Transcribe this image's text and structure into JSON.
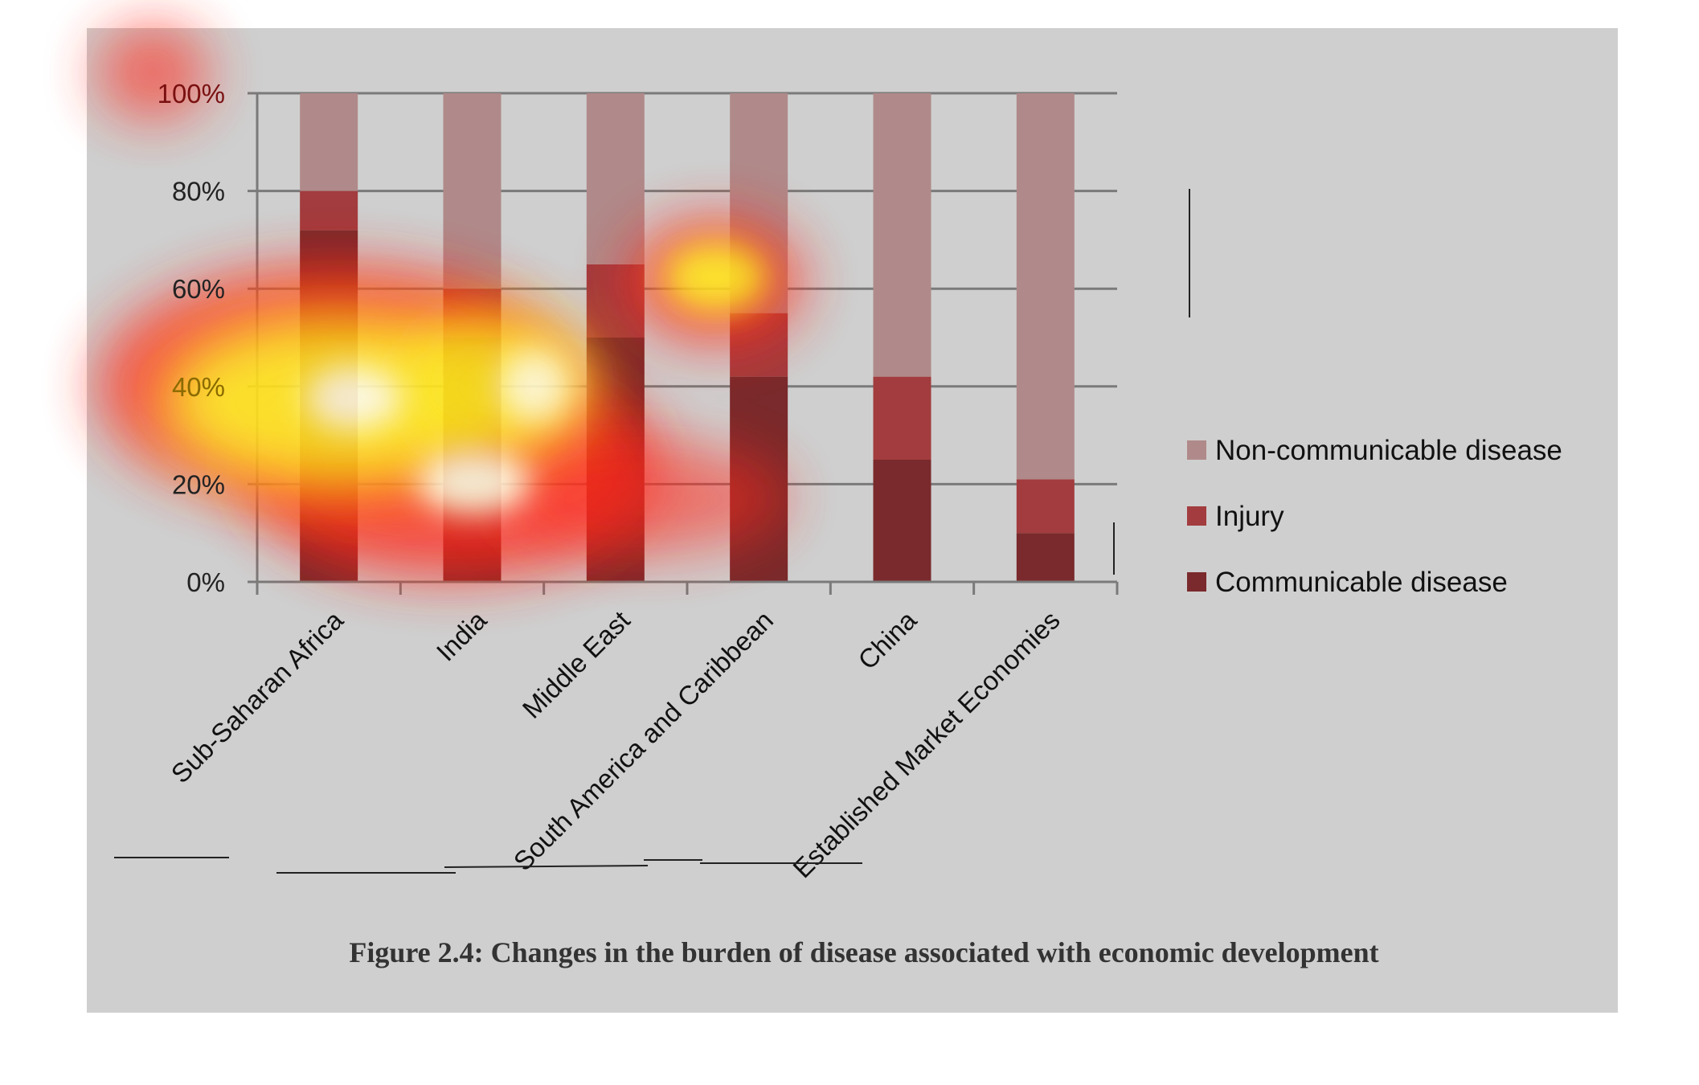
{
  "chart_data": {
    "type": "bar",
    "stacked": true,
    "percent_stacked": true,
    "categories": [
      "Sub-Saharan Africa",
      "India",
      "Middle East",
      "South America and Caribbean",
      "China",
      "Established Market Economies"
    ],
    "series": [
      {
        "name": "Communicable disease",
        "color": "#7a2a2c",
        "values": [
          72,
          50,
          50,
          42,
          25,
          10
        ]
      },
      {
        "name": "Injury",
        "color": "#a23c3e",
        "values": [
          8,
          10,
          15,
          13,
          17,
          11
        ]
      },
      {
        "name": "Non-communicable disease",
        "color": "#b08a8a",
        "values": [
          20,
          40,
          35,
          45,
          58,
          79
        ]
      }
    ],
    "legend_order": [
      "Non-communicable disease",
      "Injury",
      "Communicable disease"
    ],
    "y_ticks": [
      "0%",
      "20%",
      "40%",
      "60%",
      "80%",
      "100%"
    ],
    "ylim": [
      0,
      100
    ],
    "grid": true,
    "legend_position": "right",
    "title": "",
    "xlabel": "",
    "ylabel": ""
  },
  "caption": "Figure 2.4: Changes in the burden of disease associated with economic development",
  "colors": {
    "background": "#cfcfcf",
    "gridline": "#7a7a7a",
    "heat_core": "#fffbe0",
    "heat_mid": "#ffe91a",
    "heat_outer": "#ff2a1a"
  }
}
